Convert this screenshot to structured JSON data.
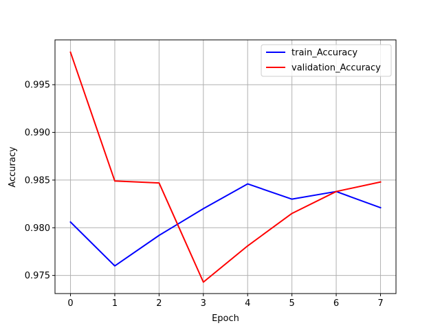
{
  "chart_data": {
    "type": "line",
    "title": "",
    "xlabel": "Epoch",
    "ylabel": "Accuracy",
    "x": [
      0,
      1,
      2,
      3,
      4,
      5,
      6,
      7
    ],
    "xlim": [
      -0.35,
      7.35
    ],
    "ylim": [
      0.9731,
      0.9997
    ],
    "xticks": [
      "0",
      "1",
      "2",
      "3",
      "4",
      "5",
      "6",
      "7"
    ],
    "yticks": [
      "0.975",
      "0.980",
      "0.985",
      "0.990",
      "0.995"
    ],
    "ytick_values": [
      0.975,
      0.98,
      0.985,
      0.99,
      0.995
    ],
    "grid": true,
    "legend_position": "top-right",
    "series": [
      {
        "name": "train_Accuracy",
        "color": "#0000ff",
        "values": [
          0.9806,
          0.976,
          0.9792,
          0.982,
          0.9846,
          0.983,
          0.9838,
          0.9821
        ]
      },
      {
        "name": "validation_Accuracy",
        "color": "#ff0000",
        "values": [
          0.9984,
          0.9849,
          0.9847,
          0.9743,
          0.9781,
          0.9815,
          0.9838,
          0.9848
        ]
      }
    ]
  }
}
